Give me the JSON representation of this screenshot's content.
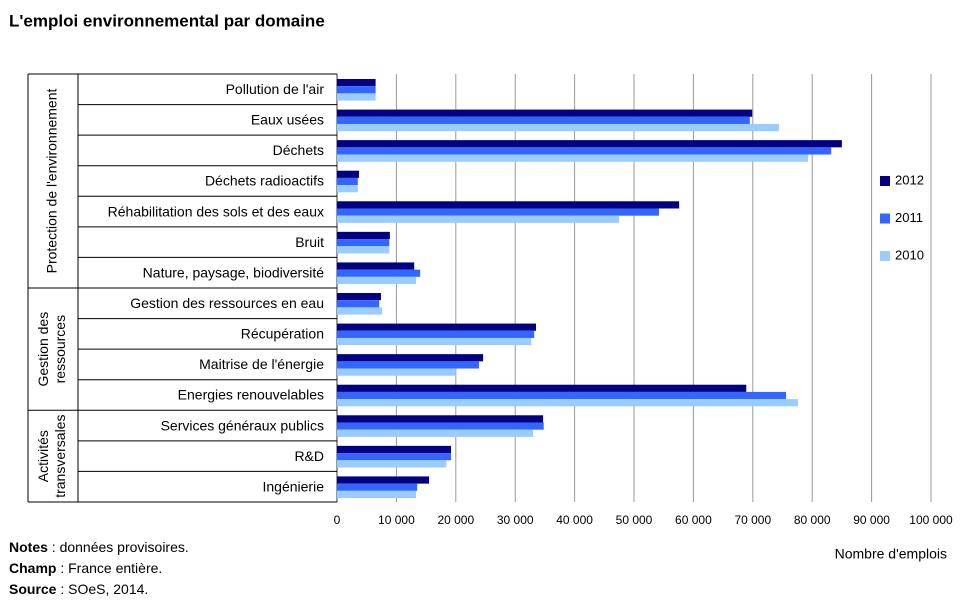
{
  "chart_data": {
    "type": "bar",
    "orientation": "horizontal",
    "title": "L'emploi environnemental par domaine",
    "groups": [
      {
        "label": [
          "Protection de l'environnement"
        ],
        "categories": [
          "Pollution de l'air",
          "Eaux usées",
          "Déchets",
          "Déchets radioactifs",
          "Réhabilitation des sols et des eaux",
          "Bruit",
          "Nature, paysage, biodiversité"
        ]
      },
      {
        "label": [
          "Gestion des",
          "ressources"
        ],
        "categories": [
          "Gestion des ressources en eau",
          "Récupération",
          "Maitrise de l'énergie",
          "Energies renouvelables"
        ]
      },
      {
        "label": [
          "Activités",
          "transversales"
        ],
        "categories": [
          "Services généraux publics",
          "R&D",
          "Ingénierie"
        ]
      }
    ],
    "series": [
      {
        "name": "2012",
        "color": "#000080",
        "values": [
          6500,
          69900,
          85000,
          3700,
          57600,
          8900,
          13000,
          7400,
          33500,
          24600,
          68900,
          34700,
          19200,
          15500
        ]
      },
      {
        "name": "2011",
        "color": "#3366ff",
        "values": [
          6500,
          69500,
          83200,
          3500,
          54200,
          8800,
          14000,
          7100,
          33200,
          23900,
          75600,
          34800,
          19200,
          13500
        ]
      },
      {
        "name": "2010",
        "color": "#99ccff",
        "values": [
          6500,
          74400,
          79300,
          3500,
          47500,
          8800,
          13300,
          7600,
          32700,
          20000,
          77600,
          33000,
          18400,
          13300
        ]
      }
    ],
    "xlim": [
      0,
      100000
    ],
    "xticks": [
      0,
      {
        "value": 10000,
        "label": "10 000"
      },
      {
        "value": 20000,
        "label": "20 000"
      },
      {
        "value": 30000,
        "label": "30 000"
      },
      {
        "value": 40000,
        "label": "40 000"
      },
      {
        "value": 50000,
        "label": "50 000"
      },
      {
        "value": 60000,
        "label": "60 000"
      },
      {
        "value": 70000,
        "label": "70 000"
      },
      {
        "value": 80000,
        "label": "80 000"
      },
      {
        "value": 90000,
        "label": "90 000"
      },
      {
        "value": 100000,
        "label": "100 000"
      }
    ],
    "xlabel": "Nombre d'emplois",
    "grid": true,
    "legend": "right",
    "notes": [
      {
        "label": "Notes",
        "text": " : données provisoires."
      },
      {
        "label": "Champ",
        "text": " : France entière."
      },
      {
        "label": "Source",
        "text": " : SOeS, 2014."
      }
    ]
  }
}
